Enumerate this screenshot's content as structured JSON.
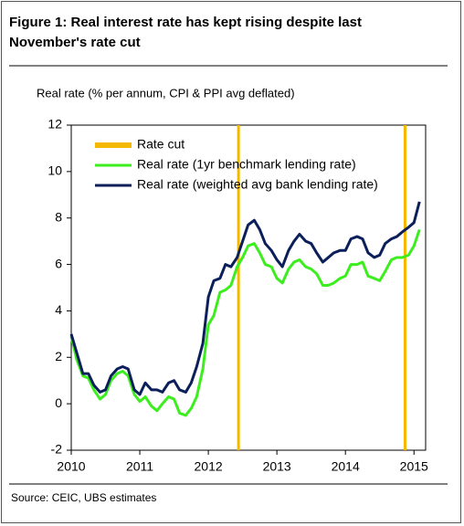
{
  "chart_data": {
    "type": "line",
    "title": "Figure 1: Real interest rate has kept rising despite last November's rate cut",
    "subtitle": "Real rate (% per annum, CPI & PPI avg deflated)",
    "source": "Source: CEIC, UBS estimates",
    "xlim": [
      2010,
      2015.17
    ],
    "xticks": [
      2010,
      2011,
      2012,
      2013,
      2014,
      2015
    ],
    "ylim": [
      -2,
      12
    ],
    "yticks": [
      -2,
      0,
      2,
      4,
      6,
      8,
      10,
      12
    ],
    "legend": "upper left",
    "rate_cuts": {
      "name": "Rate cut",
      "color": "#f5b800",
      "x": [
        2012.44,
        2014.87
      ]
    },
    "x": [
      2010.0,
      2010.08,
      2010.17,
      2010.25,
      2010.33,
      2010.42,
      2010.5,
      2010.58,
      2010.67,
      2010.75,
      2010.83,
      2010.92,
      2011.0,
      2011.08,
      2011.17,
      2011.25,
      2011.33,
      2011.42,
      2011.5,
      2011.58,
      2011.67,
      2011.75,
      2011.83,
      2011.92,
      2012.0,
      2012.08,
      2012.17,
      2012.25,
      2012.33,
      2012.42,
      2012.5,
      2012.58,
      2012.67,
      2012.75,
      2012.83,
      2012.92,
      2013.0,
      2013.08,
      2013.17,
      2013.25,
      2013.33,
      2013.42,
      2013.5,
      2013.58,
      2013.67,
      2013.75,
      2013.83,
      2013.92,
      2014.0,
      2014.08,
      2014.17,
      2014.25,
      2014.33,
      2014.42,
      2014.5,
      2014.58,
      2014.67,
      2014.75,
      2014.83,
      2014.92,
      2015.0,
      2015.08
    ],
    "series": [
      {
        "name": "Real rate (1yr benchmark lending rate)",
        "color": "#3cee1e",
        "values": [
          2.9,
          1.9,
          1.2,
          1.1,
          0.6,
          0.2,
          0.4,
          1.0,
          1.3,
          1.4,
          1.2,
          0.4,
          0.1,
          0.3,
          -0.1,
          -0.3,
          0.0,
          0.3,
          0.2,
          -0.4,
          -0.5,
          -0.2,
          0.3,
          1.5,
          3.4,
          3.8,
          4.8,
          4.9,
          5.1,
          5.9,
          6.3,
          6.8,
          6.9,
          6.5,
          6.0,
          5.9,
          5.4,
          5.2,
          5.8,
          6.1,
          6.2,
          5.9,
          5.8,
          5.6,
          5.1,
          5.1,
          5.2,
          5.4,
          5.5,
          6.0,
          6.0,
          6.1,
          5.5,
          5.4,
          5.3,
          5.7,
          6.2,
          6.3,
          6.3,
          6.4,
          6.8,
          7.5
        ]
      },
      {
        "name": "Real rate (weighted avg bank lending rate)",
        "color": "#0b1f5a",
        "values": [
          3.0,
          2.2,
          1.3,
          1.3,
          0.8,
          0.5,
          0.6,
          1.2,
          1.5,
          1.6,
          1.5,
          0.6,
          0.4,
          0.9,
          0.6,
          0.6,
          0.5,
          0.9,
          1.0,
          0.6,
          0.5,
          0.9,
          1.6,
          2.6,
          4.6,
          5.3,
          5.4,
          6.0,
          5.9,
          6.3,
          7.0,
          7.7,
          7.9,
          7.5,
          6.9,
          6.6,
          6.2,
          5.9,
          6.6,
          7.0,
          7.3,
          7.0,
          6.9,
          6.5,
          6.1,
          6.3,
          6.5,
          6.6,
          6.6,
          7.1,
          7.2,
          7.1,
          6.5,
          6.3,
          6.4,
          6.9,
          7.1,
          7.2,
          7.4,
          7.6,
          7.8,
          8.7
        ]
      }
    ]
  }
}
